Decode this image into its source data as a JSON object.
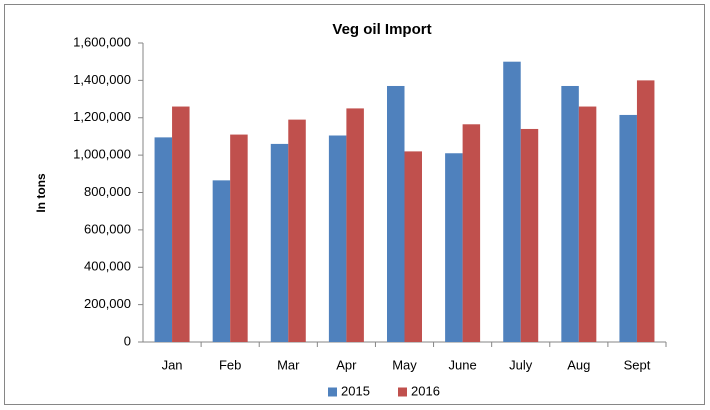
{
  "chart_data": {
    "type": "bar",
    "title": "Veg oil Import",
    "y_label": "In tons",
    "categories": [
      "Jan",
      "Feb",
      "Mar",
      "Apr",
      "May",
      "June",
      "July",
      "Aug",
      "Sept"
    ],
    "series": [
      {
        "name": "2015",
        "color": "#4f81bd",
        "values": [
          1095000,
          865000,
          1060000,
          1105000,
          1370000,
          1010000,
          1500000,
          1370000,
          1215000
        ]
      },
      {
        "name": "2016",
        "color": "#c0504d",
        "values": [
          1260000,
          1110000,
          1190000,
          1250000,
          1020000,
          1165000,
          1140000,
          1260000,
          1400000
        ]
      }
    ],
    "ylim": [
      0,
      1600000
    ],
    "yticks": [
      0,
      {
        "value": 200000,
        "label": "200,000"
      },
      {
        "value": 400000,
        "label": "400,000"
      },
      {
        "value": 600000,
        "label": "600,000"
      },
      {
        "value": 800000,
        "label": "800,000"
      },
      {
        "value": 1000000,
        "label": "1,000,000"
      },
      {
        "value": 1200000,
        "label": "1,200,000"
      },
      {
        "value": 1400000,
        "label": "1,400,000"
      },
      {
        "value": 1600000,
        "label": "1,600,000"
      }
    ],
    "grid": false,
    "legend": "bottom"
  }
}
